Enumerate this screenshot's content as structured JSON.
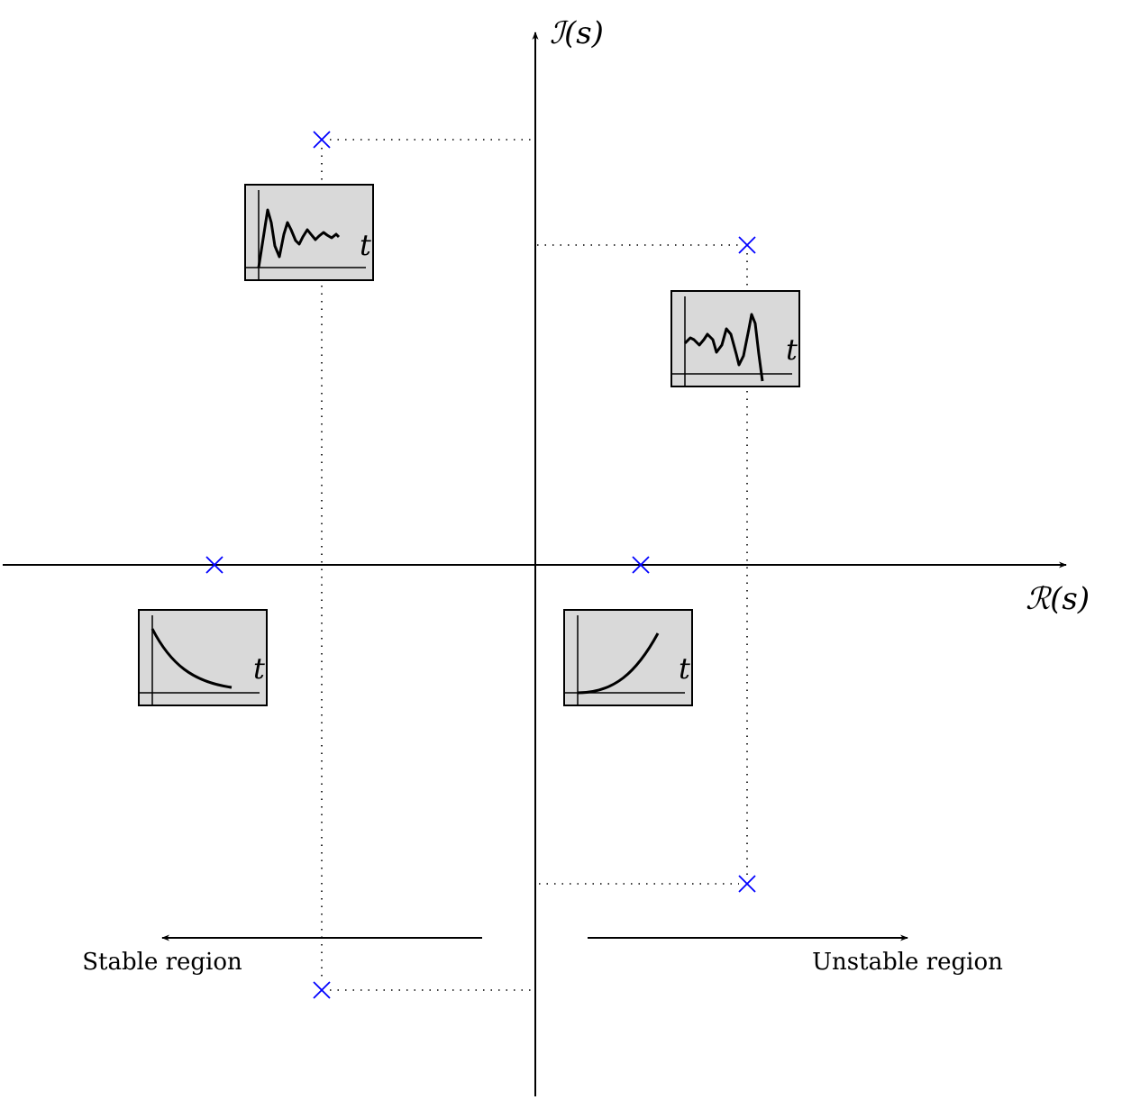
{
  "axes": {
    "imag_label": "ℐ(s)",
    "real_label": "ℛ(s)"
  },
  "regions": {
    "stable_label": "Stable region",
    "unstable_label": "Unstable region"
  },
  "insets": {
    "time_label": "t"
  },
  "colors": {
    "pole": "#0000ff",
    "inset_fill": "#d9d9d9",
    "axis": "#000000"
  }
}
